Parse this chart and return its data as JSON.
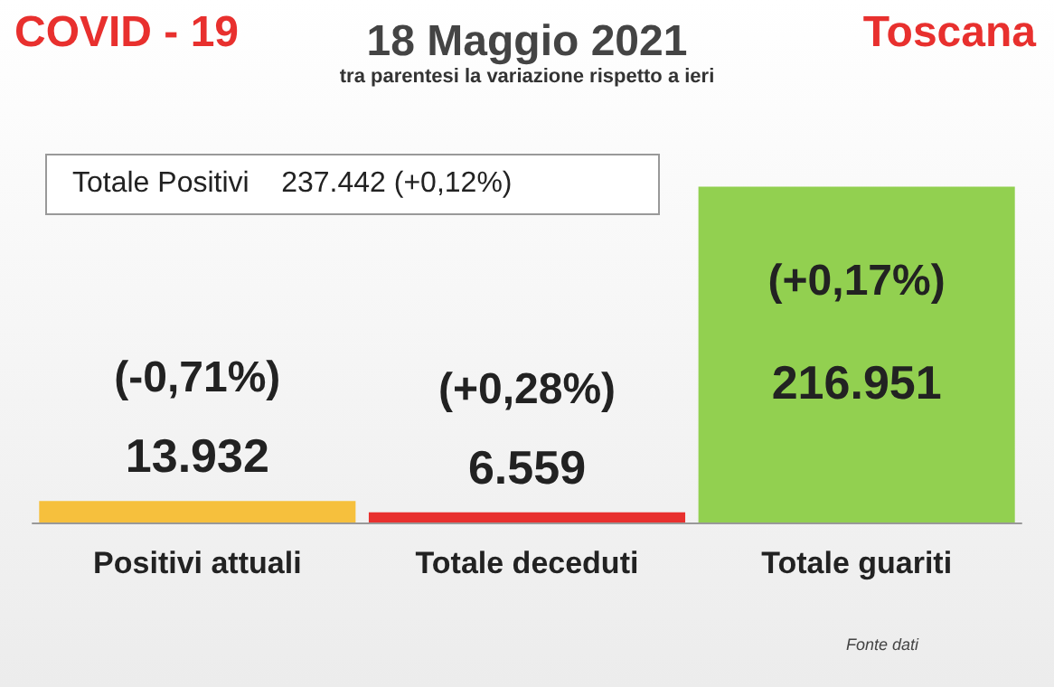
{
  "chart_data": {
    "type": "bar",
    "title": "18 Maggio 2021",
    "subtitle": "tra parentesi la variazione rispetto a ieri",
    "categories": [
      "Positivi attuali",
      "Totale deceduti",
      "Totale guariti"
    ],
    "values": [
      13932,
      6559,
      216951
    ],
    "colors": [
      "#f6c03d",
      "#e8302e",
      "#92d050"
    ],
    "value_labels": [
      "13.932",
      "6.559",
      "216.951"
    ],
    "annotations": [
      "(-0,71%)",
      "(+0,28%)",
      "(+0,17%)",
      "COVID - 19",
      "Toscana",
      "Totale Positivi    237.442 (+0,12%)",
      "Fonte dati"
    ],
    "grid": false
  }
}
